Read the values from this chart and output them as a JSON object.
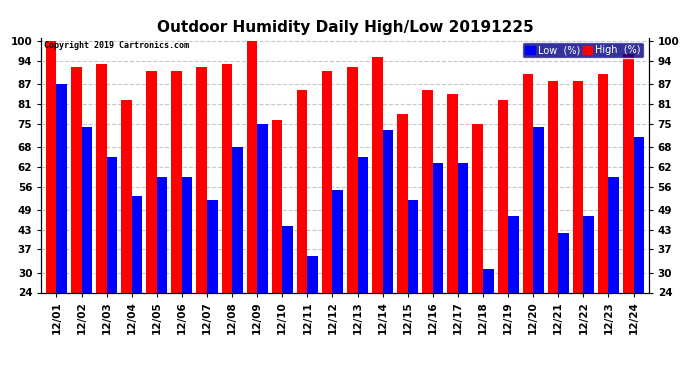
{
  "title": "Outdoor Humidity Daily High/Low 20191225",
  "copyright": "Copyright 2019 Cartronics.com",
  "categories": [
    "12/01",
    "12/02",
    "12/03",
    "12/04",
    "12/05",
    "12/06",
    "12/07",
    "12/08",
    "12/09",
    "12/10",
    "12/11",
    "12/12",
    "12/13",
    "12/14",
    "12/15",
    "12/16",
    "12/17",
    "12/18",
    "12/19",
    "12/20",
    "12/21",
    "12/22",
    "12/23",
    "12/24"
  ],
  "high_values": [
    100,
    92,
    93,
    82,
    91,
    91,
    92,
    93,
    100,
    76,
    85,
    91,
    92,
    95,
    78,
    85,
    84,
    75,
    82,
    90,
    88,
    88,
    90,
    96
  ],
  "low_values": [
    87,
    74,
    65,
    53,
    59,
    59,
    52,
    68,
    75,
    44,
    35,
    55,
    65,
    73,
    52,
    63,
    63,
    31,
    47,
    74,
    42,
    47,
    59,
    71
  ],
  "high_color": "#FF0000",
  "low_color": "#0000FF",
  "background_color": "#FFFFFF",
  "ylim_low": 24,
  "ylim_high": 101,
  "yticks": [
    24,
    30,
    37,
    43,
    49,
    56,
    62,
    68,
    75,
    81,
    87,
    94,
    100
  ],
  "grid_color": "#C8C8C8",
  "bar_width": 0.42,
  "title_fontsize": 11,
  "tick_fontsize": 7.5,
  "legend_low_label": "Low  (%)",
  "legend_high_label": "High  (%)"
}
